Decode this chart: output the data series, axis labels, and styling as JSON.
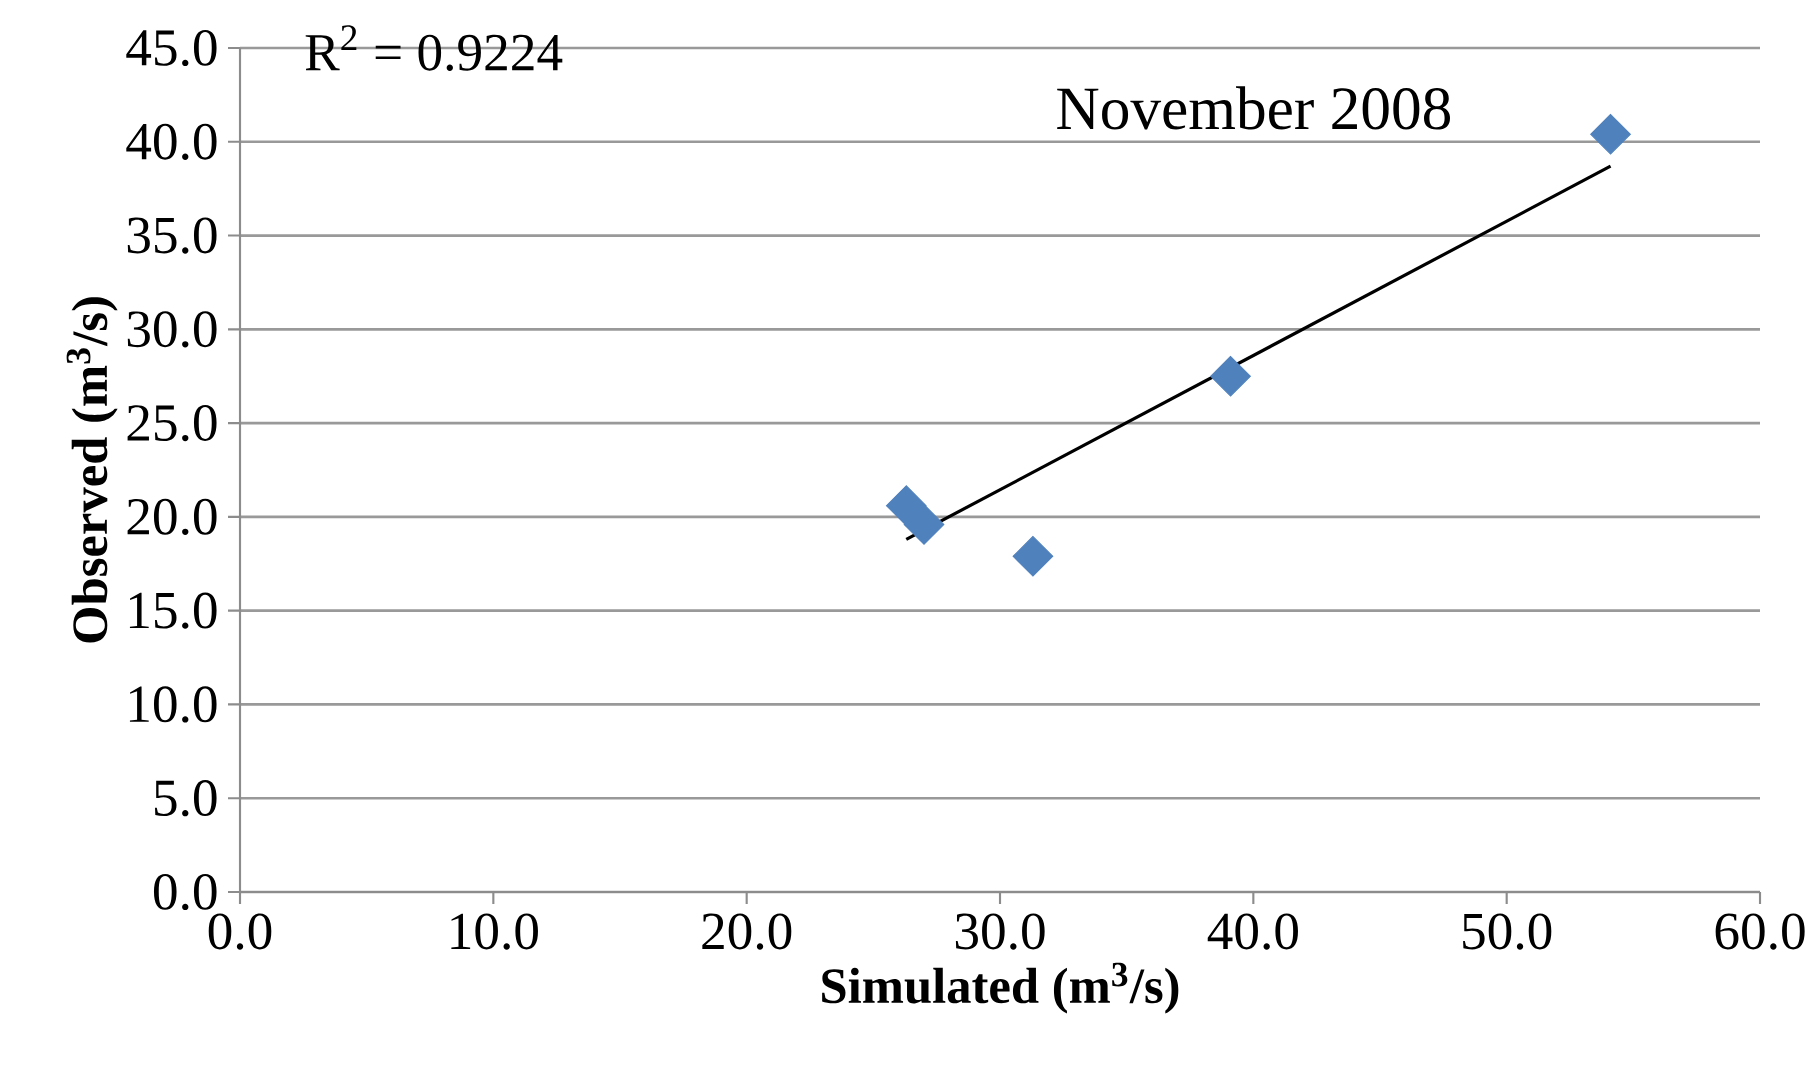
{
  "chart_data": {
    "type": "scatter",
    "title": "November 2008",
    "xlabel": "Simulated (m$^{3}$/s)",
    "ylabel": "Observed (m$^{3}$/s)",
    "annotations": [
      "R$^{2}$ = 0.9224"
    ],
    "series": [
      {
        "color": "#4f81bd",
        "x": [
          26.3,
          27.0,
          31.3,
          39.1,
          54.1
        ],
        "values": [
          20.6,
          19.6,
          17.9,
          27.5,
          40.4
        ]
      },
      {
        "type": "line",
        "marker": "none",
        "color": "#000000",
        "x": [
          26.3,
          54.1
        ],
        "values": [
          18.8,
          38.7
        ]
      }
    ],
    "marker": "diamond",
    "grid": "y",
    "xlim": [
      0,
      60
    ],
    "ylim": [
      0,
      45
    ],
    "xticks": [
      {
        "value": 0,
        "label": "0.0"
      },
      {
        "value": 10,
        "label": "10.0"
      },
      {
        "value": 20,
        "label": "20.0"
      },
      {
        "value": 30,
        "label": "30.0"
      },
      {
        "value": 40,
        "label": "40.0"
      },
      {
        "value": 50,
        "label": "50.0"
      },
      {
        "value": 60,
        "label": "60.0"
      }
    ],
    "yticks": [
      {
        "value": 0,
        "label": "0.0"
      },
      {
        "value": 5,
        "label": "5.0"
      },
      {
        "value": 10,
        "label": "10.0"
      },
      {
        "value": 15,
        "label": "15.0"
      },
      {
        "value": 20,
        "label": "20.0"
      },
      {
        "value": 25,
        "label": "25.0"
      },
      {
        "value": 30,
        "label": "30.0"
      },
      {
        "value": 35,
        "label": "35.0"
      },
      {
        "value": 40,
        "label": "40.0"
      },
      {
        "value": 45,
        "label": "45.0"
      }
    ]
  }
}
